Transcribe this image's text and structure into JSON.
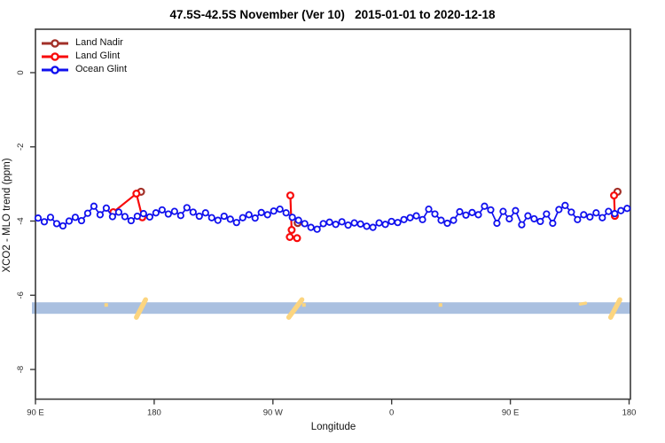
{
  "title": "47.5S-42.5S November (Ver 10)   2015-01-01 to 2020-12-18",
  "legend": {
    "items": [
      {
        "label": "Land Nadir",
        "color": "#a23028"
      },
      {
        "label": "Land Glint",
        "color": "#f80b0b"
      },
      {
        "label": "Ocean Glint",
        "color": "#1010ee"
      }
    ]
  },
  "axes": {
    "xlabel": "Longitude",
    "ylabel": "XCO2 - MLO trend (ppm)",
    "xlim": [
      90,
      541
    ],
    "ylim": [
      -8.8,
      1.17
    ],
    "x_ticks": [
      {
        "value": 90,
        "label": "90 E"
      },
      {
        "value": 180,
        "label": "180"
      },
      {
        "value": 270,
        "label": "90 W"
      },
      {
        "value": 360,
        "label": "0"
      },
      {
        "value": 450,
        "label": "90 E"
      },
      {
        "value": 540,
        "label": "180"
      }
    ],
    "y_ticks": [
      {
        "value": 0,
        "label": "0"
      },
      {
        "value": -2,
        "label": "-2"
      },
      {
        "value": -4,
        "label": "-4"
      },
      {
        "value": -6,
        "label": "-6"
      },
      {
        "value": -8,
        "label": "-8"
      }
    ]
  },
  "map_strip": {
    "ocean_color": "#aac0e0",
    "land_color": "#fcd57f",
    "top_ppm": -6.19,
    "bottom_ppm": -6.5,
    "land_patches": [
      {
        "lon": 143.6,
        "kind": "dot",
        "w": 1.5
      },
      {
        "lon": 170.0,
        "kind": "slash",
        "w": 7
      },
      {
        "lon": 287.0,
        "kind": "slash",
        "w": 10
      },
      {
        "lon": 293.5,
        "kind": "dot",
        "w": 1.5
      },
      {
        "lon": 397.0,
        "kind": "dot",
        "w": 1.2
      },
      {
        "lon": 505.0,
        "kind": "dash",
        "w": 4
      },
      {
        "lon": 529.5,
        "kind": "slash",
        "w": 7
      }
    ]
  },
  "chart_data": {
    "type": "line",
    "title": "47.5S-42.5S November (Ver 10)   2015-01-01 to 2020-12-18",
    "xlabel": "Longitude",
    "ylabel": "XCO2 - MLO trend (ppm)",
    "xlim": [
      90,
      541
    ],
    "ylim": [
      -8.8,
      1.17
    ],
    "grid": false,
    "legend_position": "top-left",
    "series": [
      {
        "name": "Ocean Glint",
        "color": "#1010ee",
        "marker": "open-circle",
        "points": [
          [
            92.0,
            -3.92
          ],
          [
            96.7,
            -4.02
          ],
          [
            101.4,
            -3.9
          ],
          [
            106.1,
            -4.07
          ],
          [
            110.8,
            -4.13
          ],
          [
            115.5,
            -4.0
          ],
          [
            120.2,
            -3.9
          ],
          [
            124.9,
            -3.99
          ],
          [
            129.6,
            -3.79
          ],
          [
            134.3,
            -3.6
          ],
          [
            139.0,
            -3.83
          ],
          [
            143.7,
            -3.65
          ],
          [
            148.4,
            -3.88
          ],
          [
            153.1,
            -3.76
          ],
          [
            157.8,
            -3.88
          ],
          [
            162.5,
            -3.99
          ],
          [
            167.2,
            -3.87
          ],
          [
            171.9,
            -3.8
          ],
          [
            176.6,
            -3.89
          ],
          [
            181.3,
            -3.78
          ],
          [
            186.0,
            -3.7
          ],
          [
            190.7,
            -3.81
          ],
          [
            195.4,
            -3.74
          ],
          [
            200.1,
            -3.85
          ],
          [
            204.8,
            -3.64
          ],
          [
            209.5,
            -3.76
          ],
          [
            214.2,
            -3.87
          ],
          [
            218.9,
            -3.78
          ],
          [
            223.6,
            -3.91
          ],
          [
            228.3,
            -3.98
          ],
          [
            233.0,
            -3.87
          ],
          [
            237.7,
            -3.95
          ],
          [
            242.4,
            -4.04
          ],
          [
            247.1,
            -3.91
          ],
          [
            251.8,
            -3.83
          ],
          [
            256.5,
            -3.92
          ],
          [
            261.2,
            -3.77
          ],
          [
            265.9,
            -3.83
          ],
          [
            270.6,
            -3.73
          ],
          [
            275.3,
            -3.68
          ],
          [
            280.0,
            -3.78
          ],
          [
            284.7,
            -3.9
          ],
          [
            289.4,
            -3.98
          ],
          [
            294.1,
            -4.07
          ],
          [
            298.8,
            -4.17
          ],
          [
            303.5,
            -4.22
          ],
          [
            308.2,
            -4.07
          ],
          [
            312.9,
            -4.03
          ],
          [
            317.6,
            -4.09
          ],
          [
            322.3,
            -4.02
          ],
          [
            327.0,
            -4.11
          ],
          [
            331.7,
            -4.05
          ],
          [
            336.4,
            -4.08
          ],
          [
            341.1,
            -4.14
          ],
          [
            345.8,
            -4.17
          ],
          [
            350.5,
            -4.05
          ],
          [
            355.2,
            -4.09
          ],
          [
            359.9,
            -4.01
          ],
          [
            364.6,
            -4.04
          ],
          [
            369.3,
            -3.96
          ],
          [
            374.0,
            -3.91
          ],
          [
            378.7,
            -3.86
          ],
          [
            383.4,
            -3.96
          ],
          [
            388.1,
            -3.68
          ],
          [
            392.8,
            -3.81
          ],
          [
            397.5,
            -3.98
          ],
          [
            402.2,
            -4.06
          ],
          [
            406.9,
            -3.98
          ],
          [
            411.6,
            -3.75
          ],
          [
            416.3,
            -3.84
          ],
          [
            421.0,
            -3.77
          ],
          [
            425.7,
            -3.83
          ],
          [
            430.4,
            -3.6
          ],
          [
            435.1,
            -3.7
          ],
          [
            439.8,
            -4.06
          ],
          [
            444.5,
            -3.74
          ],
          [
            449.2,
            -3.94
          ],
          [
            453.9,
            -3.72
          ],
          [
            458.6,
            -4.1
          ],
          [
            463.3,
            -3.86
          ],
          [
            468.0,
            -3.94
          ],
          [
            472.7,
            -4.01
          ],
          [
            477.4,
            -3.81
          ],
          [
            482.1,
            -4.06
          ],
          [
            486.8,
            -3.69
          ],
          [
            491.5,
            -3.58
          ],
          [
            496.2,
            -3.76
          ],
          [
            500.9,
            -3.96
          ],
          [
            505.6,
            -3.83
          ],
          [
            510.3,
            -3.89
          ],
          [
            515.0,
            -3.78
          ],
          [
            519.7,
            -3.91
          ],
          [
            524.4,
            -3.74
          ],
          [
            529.1,
            -3.8
          ],
          [
            533.8,
            -3.72
          ],
          [
            538.5,
            -3.66
          ]
        ]
      },
      {
        "name": "Land Glint",
        "color": "#f80b0b",
        "marker": "open-circle",
        "clusters": [
          [
            [
              149.0,
              -3.76
            ],
            [
              166.5,
              -3.26
            ],
            [
              171.0,
              -3.9
            ]
          ],
          [
            [
              283.2,
              -3.31
            ],
            [
              284.2,
              -4.24
            ],
            [
              282.8,
              -4.43
            ],
            [
              288.3,
              -4.46
            ]
          ],
          [
            [
              528.6,
              -3.31
            ],
            [
              529.2,
              -3.86
            ]
          ]
        ]
      },
      {
        "name": "Land Nadir",
        "color": "#a23028",
        "marker": "open-circle",
        "points": [
          [
            170.0,
            -3.21
          ],
          [
            288.8,
            -4.05
          ],
          [
            531.2,
            -3.21
          ]
        ]
      }
    ]
  }
}
